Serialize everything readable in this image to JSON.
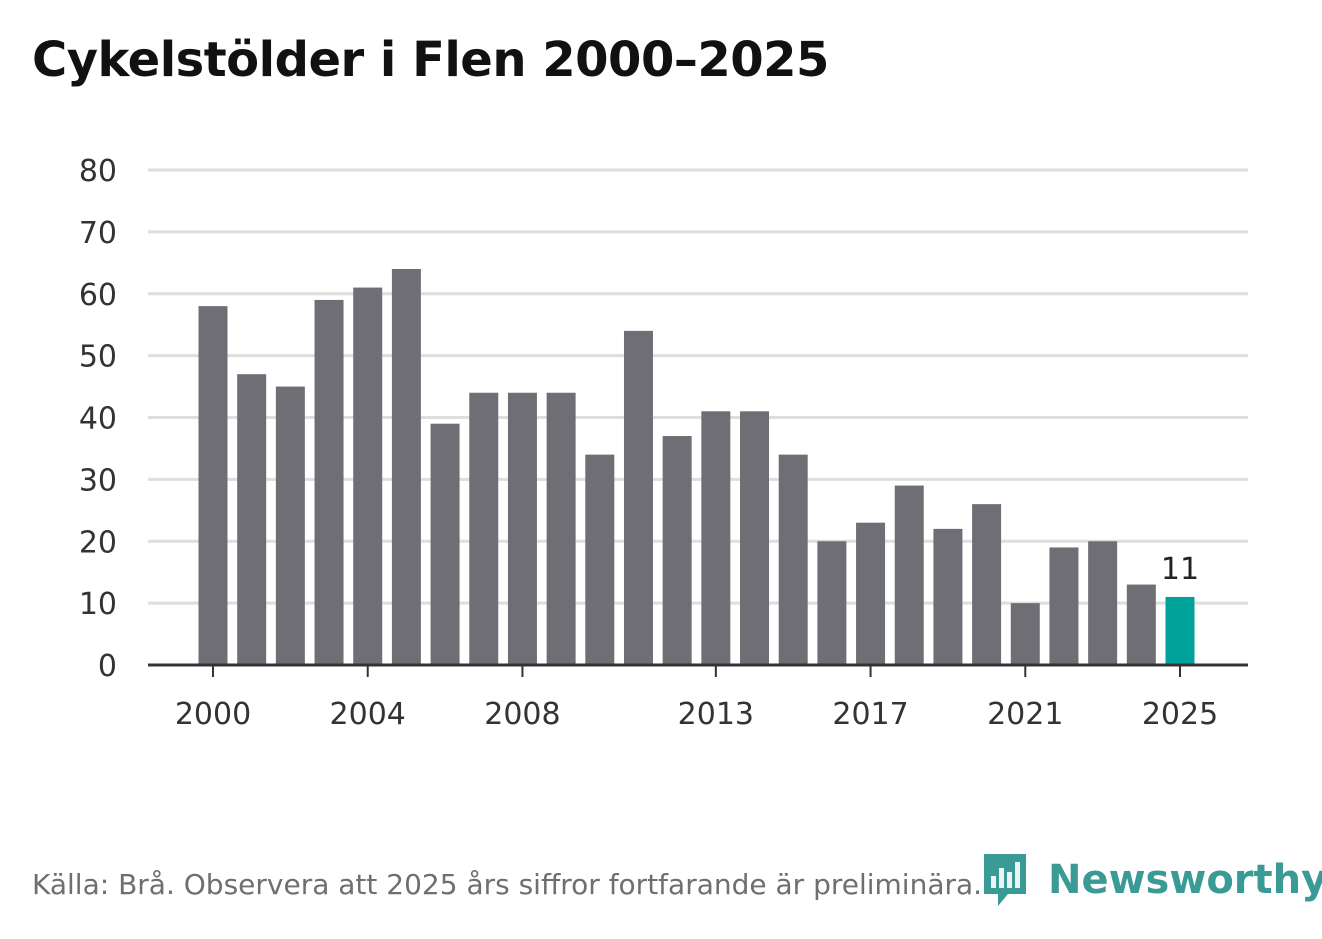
{
  "title": "Cykelstölder i Flen 2000–2025",
  "source": "Källa: Brå. Observera att 2025 års siffror fortfarande är preliminära.",
  "brand": {
    "name": "Newsworthy",
    "logo_icon": "newsworthy-logo-icon",
    "color": "#3a9a96"
  },
  "colors": {
    "bar": "#6f6e75",
    "highlight": "#00a39a",
    "grid": "#dedede",
    "axis": "#333333"
  },
  "chart_data": {
    "type": "bar",
    "title": "Cykelstölder i Flen 2000–2025",
    "xlabel": "",
    "ylabel": "",
    "categories": [
      "2000",
      "2001",
      "2002",
      "2003",
      "2004",
      "2005",
      "2006",
      "2007",
      "2008",
      "2009",
      "2010",
      "2011",
      "2012",
      "2013",
      "2014",
      "2015",
      "2016",
      "2017",
      "2018",
      "2019",
      "2020",
      "2021",
      "2022",
      "2023",
      "2024",
      "2025"
    ],
    "values": [
      58,
      47,
      45,
      59,
      61,
      64,
      39,
      44,
      44,
      44,
      34,
      54,
      37,
      41,
      41,
      34,
      20,
      23,
      29,
      22,
      26,
      10,
      19,
      20,
      13,
      11
    ],
    "ylim": [
      0,
      80
    ],
    "yticks": [
      0,
      10,
      20,
      30,
      40,
      50,
      60,
      70,
      80
    ],
    "xtick_labels": [
      "2000",
      "2004",
      "2008",
      "2013",
      "2017",
      "2021",
      "2025"
    ],
    "highlight_category": "2025",
    "data_labels": [
      {
        "category": "2025",
        "text": "11"
      }
    ],
    "grid": true,
    "legend": "none"
  }
}
